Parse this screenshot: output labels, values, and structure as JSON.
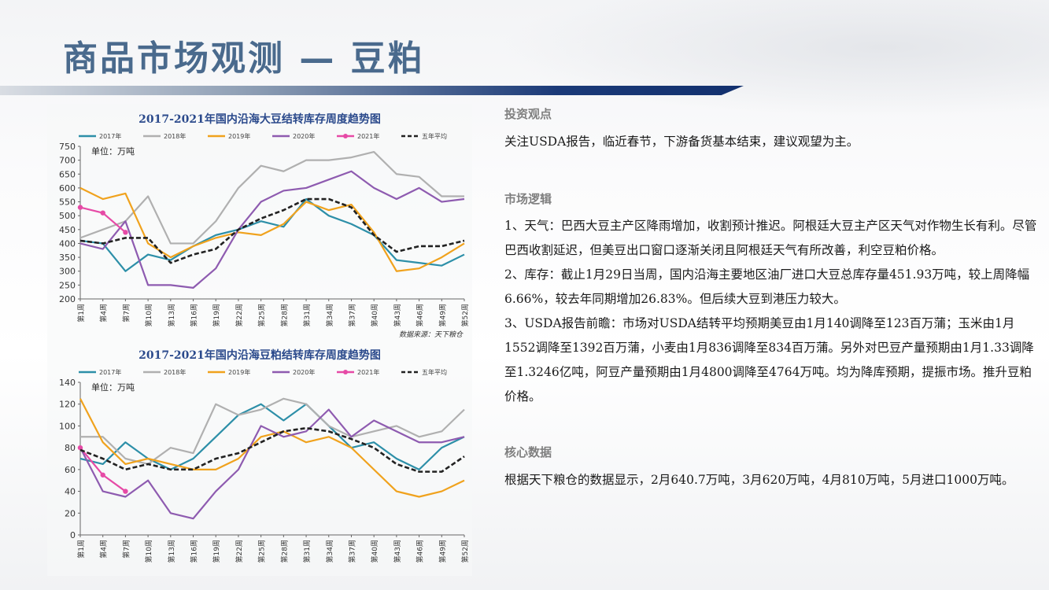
{
  "slide": {
    "title": "商品市场观测 — 豆粕"
  },
  "colors": {
    "title": "#4a6a8d",
    "bar": "#1b3a78",
    "c2017": "#2d8fa8",
    "c2018": "#b0b0b0",
    "c2019": "#f0a21d",
    "c2020": "#8e5bb0",
    "c2021": "#e64aa6",
    "avg": "#222222"
  },
  "right": {
    "view_heading": "投资观点",
    "view_text": "关注USDA报告，临近春节，下游备货基本结束，建议观望为主。",
    "logic_heading": "市场逻辑",
    "logic_1": "1、天气：巴西大豆主产区降雨增加，收割预计推迟。阿根廷大豆主产区天气对作物生长有利。尽管巴西收割延迟，但美豆出口窗口逐渐关闭且阿根廷天气有所改善，利空豆粕价格。",
    "logic_2": "2、库存：截止1月29日当周，国内沿海主要地区油厂进口大豆总库存量451.93万吨，较上周降幅6.66%，较去年同期增加26.83%。但后续大豆到港压力较大。",
    "logic_3": "3、USDA报告前瞻：市场对USDA结转平均预期美豆由1月140调降至123百万蒲；玉米由1月1552调降至1392百万蒲，小麦由1月836调降至834百万蒲。另外对巴豆产量预期由1月1.33调降至1.3246亿吨，阿豆产量预期由1月4800调降至4764万吨。均为降库预期，提振市场。推升豆粕价格。",
    "core_heading": "核心数据",
    "core_text": "根据天下粮仓的数据显示，2月640.7万吨，3月620万吨，4月810万吨，5月进口1000万吨。"
  },
  "chart_data": [
    {
      "type": "line",
      "title": "2017-2021年国内沿海大豆结转库存周度趋势图",
      "unit_label": "单位：万吨",
      "source": "数据来源：天下粮仓",
      "legend": [
        "2017年",
        "2018年",
        "2019年",
        "2020年",
        "2021年",
        "五年平均"
      ],
      "ylim": [
        200,
        750
      ],
      "yticks": [
        200,
        250,
        300,
        350,
        400,
        450,
        500,
        550,
        600,
        650,
        700,
        750
      ],
      "xticks": [
        "第1周",
        "第4周",
        "第7周",
        "第10周",
        "第13周",
        "第16周",
        "第19周",
        "第22周",
        "第25周",
        "第28周",
        "第31周",
        "第34周",
        "第37周",
        "第40周",
        "第43周",
        "第46周",
        "第49周",
        "第52周"
      ],
      "x_weeks": [
        1,
        4,
        7,
        10,
        13,
        16,
        19,
        22,
        25,
        28,
        31,
        34,
        37,
        40,
        43,
        46,
        49,
        52
      ],
      "series": [
        {
          "name": "2017年",
          "values": [
            410,
            400,
            300,
            360,
            340,
            390,
            430,
            450,
            480,
            460,
            560,
            500,
            470,
            430,
            340,
            330,
            320,
            360
          ]
        },
        {
          "name": "2018年",
          "values": [
            420,
            450,
            480,
            570,
            400,
            400,
            480,
            600,
            680,
            660,
            700,
            700,
            710,
            730,
            650,
            640,
            570,
            570
          ]
        },
        {
          "name": "2019年",
          "values": [
            600,
            560,
            580,
            400,
            350,
            390,
            420,
            440,
            430,
            470,
            550,
            520,
            540,
            440,
            300,
            310,
            350,
            400
          ]
        },
        {
          "name": "2020年",
          "values": [
            400,
            380,
            480,
            250,
            250,
            240,
            310,
            450,
            550,
            590,
            600,
            630,
            660,
            600,
            560,
            600,
            550,
            560
          ]
        },
        {
          "name": "2021年",
          "values": [
            530,
            510,
            440
          ]
        },
        {
          "name": "五年平均",
          "values": [
            410,
            400,
            420,
            420,
            330,
            360,
            380,
            450,
            490,
            520,
            560,
            560,
            530,
            430,
            370,
            390,
            390,
            410
          ]
        }
      ]
    },
    {
      "type": "line",
      "title": "2017-2021年国内沿海豆粕结转库存周度趋势图",
      "unit_label": "单位：万吨",
      "legend": [
        "2017年",
        "2018年",
        "2019年",
        "2020年",
        "2021年",
        "五年平均"
      ],
      "ylim": [
        0,
        140
      ],
      "yticks": [
        0,
        20,
        40,
        60,
        80,
        100,
        120,
        140
      ],
      "xticks": [
        "第1周",
        "第4周",
        "第7周",
        "第10周",
        "第13周",
        "第16周",
        "第19周",
        "第22周",
        "第25周",
        "第28周",
        "第31周",
        "第34周",
        "第37周",
        "第40周",
        "第43周",
        "第46周",
        "第49周",
        "第52周"
      ],
      "x_weeks": [
        1,
        4,
        7,
        10,
        13,
        16,
        19,
        22,
        25,
        28,
        31,
        34,
        37,
        40,
        43,
        46,
        49,
        52
      ],
      "series": [
        {
          "name": "2017年",
          "values": [
            70,
            65,
            85,
            70,
            60,
            70,
            90,
            110,
            120,
            105,
            120,
            100,
            80,
            85,
            70,
            60,
            80,
            90
          ]
        },
        {
          "name": "2018年",
          "values": [
            90,
            90,
            70,
            65,
            80,
            75,
            120,
            110,
            115,
            125,
            120,
            100,
            90,
            95,
            100,
            90,
            95,
            115
          ]
        },
        {
          "name": "2019年",
          "values": [
            125,
            85,
            65,
            70,
            65,
            60,
            60,
            70,
            90,
            95,
            85,
            90,
            80,
            60,
            40,
            35,
            40,
            50
          ]
        },
        {
          "name": "2020年",
          "values": [
            80,
            40,
            35,
            50,
            20,
            15,
            40,
            60,
            100,
            90,
            95,
            115,
            90,
            105,
            95,
            85,
            85,
            90
          ]
        },
        {
          "name": "2021年",
          "values": [
            80,
            55,
            40
          ]
        },
        {
          "name": "五年平均",
          "values": [
            78,
            70,
            60,
            65,
            60,
            60,
            70,
            75,
            85,
            95,
            98,
            95,
            88,
            80,
            65,
            58,
            58,
            72
          ]
        }
      ]
    }
  ]
}
